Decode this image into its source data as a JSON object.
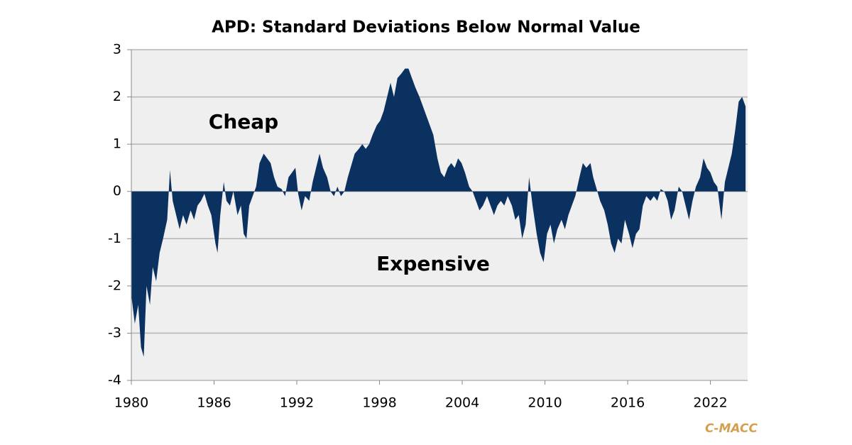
{
  "chart_data": {
    "type": "area",
    "title": "APD: Standard Deviations Below Normal Value",
    "annotations": [
      {
        "text": "Cheap",
        "color": "#1fa84f"
      },
      {
        "text": "Expensive",
        "color": "#ff0000"
      }
    ],
    "source": "C-MACC",
    "color": "#0b3161",
    "grid": true,
    "xlim": [
      1980,
      2024.7
    ],
    "xticks": [
      1980,
      1986,
      1992,
      1998,
      2004,
      2010,
      2016,
      2022
    ],
    "ylim": [
      -4,
      3
    ],
    "yticks": [
      -4,
      -3,
      -2,
      -1,
      0,
      1,
      2,
      3
    ],
    "x": [
      1980.0,
      1980.25,
      1980.5,
      1980.7,
      1980.9,
      1981.1,
      1981.35,
      1981.55,
      1981.8,
      1982.05,
      1982.3,
      1982.6,
      1982.8,
      1983.0,
      1983.25,
      1983.5,
      1983.75,
      1984.0,
      1984.3,
      1984.55,
      1984.8,
      1985.05,
      1985.3,
      1985.55,
      1985.8,
      1986.1,
      1986.25,
      1986.45,
      1986.7,
      1986.9,
      1987.15,
      1987.4,
      1987.7,
      1987.95,
      1988.15,
      1988.35,
      1988.55,
      1988.8,
      1989.05,
      1989.3,
      1989.6,
      1989.85,
      1990.1,
      1990.35,
      1990.6,
      1990.9,
      1991.15,
      1991.4,
      1991.65,
      1991.9,
      1992.1,
      1992.35,
      1992.6,
      1992.9,
      1993.15,
      1993.4,
      1993.65,
      1993.9,
      1994.2,
      1994.45,
      1994.7,
      1994.95,
      1995.2,
      1995.45,
      1995.7,
      1996.0,
      1996.2,
      1996.5,
      1996.75,
      1997.0,
      1997.25,
      1997.5,
      1997.8,
      1998.05,
      1998.3,
      1998.55,
      1998.8,
      1999.05,
      1999.3,
      1999.6,
      1999.85,
      2000.1,
      2000.35,
      2000.6,
      2000.9,
      2001.15,
      2001.4,
      2001.65,
      2001.9,
      2002.2,
      2002.45,
      2002.7,
      2002.95,
      2003.2,
      2003.45,
      2003.7,
      2003.95,
      2004.2,
      2004.5,
      2004.75,
      2005.0,
      2005.25,
      2005.5,
      2005.8,
      2006.05,
      2006.3,
      2006.55,
      2006.8,
      2007.05,
      2007.3,
      2007.6,
      2007.85,
      2008.1,
      2008.35,
      2008.6,
      2008.85,
      2009.1,
      2009.4,
      2009.65,
      2009.9,
      2010.15,
      2010.4,
      2010.65,
      2010.9,
      2011.2,
      2011.45,
      2011.7,
      2011.95,
      2012.2,
      2012.5,
      2012.75,
      2013.0,
      2013.3,
      2013.5,
      2013.8,
      2014.0,
      2014.3,
      2014.55,
      2014.8,
      2015.05,
      2015.3,
      2015.55,
      2015.8,
      2016.1,
      2016.35,
      2016.6,
      2016.85,
      2017.1,
      2017.35,
      2017.65,
      2017.9,
      2018.15,
      2018.4,
      2018.65,
      2018.9,
      2019.15,
      2019.4,
      2019.7,
      2019.95,
      2020.2,
      2020.45,
      2020.7,
      2020.95,
      2021.25,
      2021.5,
      2021.75,
      2022.0,
      2022.25,
      2022.5,
      2022.8,
      2023.05,
      2023.3,
      2023.55,
      2023.8,
      2024.05,
      2024.3,
      2024.55
    ],
    "values": [
      -2.2,
      -2.8,
      -2.4,
      -3.3,
      -3.5,
      -2.0,
      -2.4,
      -1.6,
      -1.9,
      -1.3,
      -1.0,
      -0.6,
      0.45,
      -0.2,
      -0.5,
      -0.8,
      -0.5,
      -0.7,
      -0.4,
      -0.6,
      -0.3,
      -0.2,
      -0.05,
      -0.3,
      -0.5,
      -1.1,
      -1.3,
      -0.5,
      0.2,
      -0.2,
      -0.3,
      0.0,
      -0.5,
      -0.3,
      -0.9,
      -1.0,
      -0.3,
      -0.1,
      0.1,
      0.6,
      0.8,
      0.7,
      0.6,
      0.3,
      0.1,
      0.05,
      -0.1,
      0.3,
      0.4,
      0.5,
      -0.05,
      -0.4,
      -0.1,
      -0.2,
      0.2,
      0.5,
      0.8,
      0.5,
      0.3,
      0.0,
      -0.1,
      0.1,
      -0.1,
      0.0,
      0.3,
      0.6,
      0.8,
      0.9,
      1.0,
      0.9,
      1.0,
      1.2,
      1.4,
      1.5,
      1.7,
      2.0,
      2.3,
      2.0,
      2.4,
      2.5,
      2.6,
      2.6,
      2.4,
      2.2,
      2.0,
      1.8,
      1.6,
      1.4,
      1.2,
      0.7,
      0.4,
      0.3,
      0.5,
      0.6,
      0.5,
      0.7,
      0.6,
      0.4,
      0.1,
      0.0,
      -0.2,
      -0.4,
      -0.3,
      -0.1,
      -0.3,
      -0.5,
      -0.3,
      -0.2,
      -0.3,
      -0.1,
      -0.3,
      -0.6,
      -0.5,
      -1.0,
      -0.7,
      0.3,
      -0.3,
      -0.9,
      -1.3,
      -1.5,
      -0.9,
      -0.7,
      -1.1,
      -0.8,
      -0.6,
      -0.8,
      -0.5,
      -0.3,
      -0.1,
      0.3,
      0.6,
      0.5,
      0.6,
      0.3,
      0.0,
      -0.2,
      -0.4,
      -0.7,
      -1.1,
      -1.3,
      -1.0,
      -1.1,
      -0.6,
      -0.9,
      -1.2,
      -0.9,
      -0.8,
      -0.3,
      -0.1,
      -0.2,
      -0.1,
      -0.2,
      0.05,
      0.0,
      -0.2,
      -0.6,
      -0.4,
      0.1,
      0.0,
      -0.3,
      -0.6,
      -0.2,
      0.1,
      0.3,
      0.7,
      0.5,
      0.4,
      0.2,
      0.1,
      -0.6,
      0.2,
      0.5,
      0.8,
      1.3,
      1.9,
      2.0,
      1.8
    ]
  }
}
